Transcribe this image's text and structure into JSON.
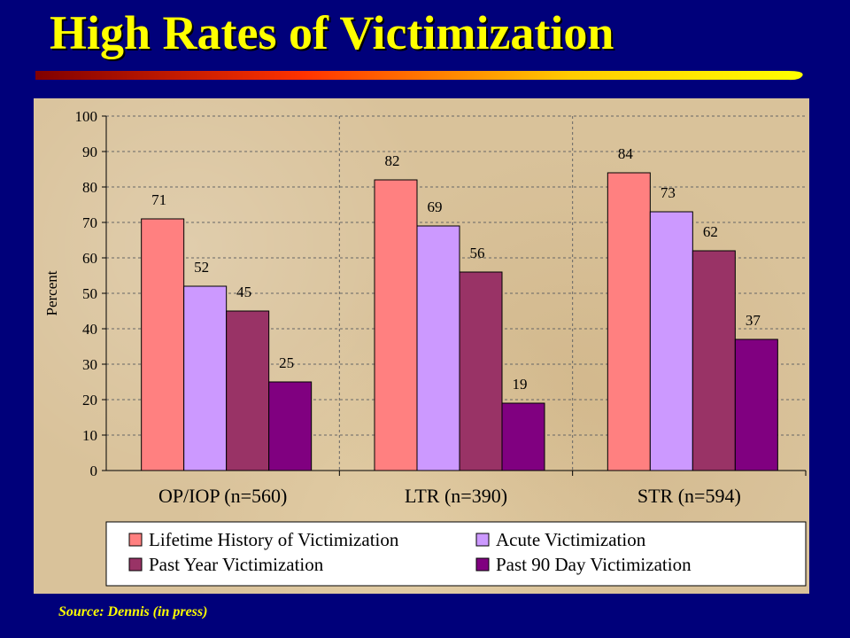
{
  "slide": {
    "title": "High Rates of Victimization",
    "source": "Source:   Dennis (in press)"
  },
  "colors": {
    "background": "#00007a",
    "title": "#ffff00",
    "panel": "#d9c29a"
  },
  "chart_data": {
    "type": "bar",
    "title": "",
    "xlabel": "",
    "ylabel": "Percent",
    "ylim": [
      0,
      100
    ],
    "yticks": [
      0,
      10,
      20,
      30,
      40,
      50,
      60,
      70,
      80,
      90,
      100
    ],
    "grid": true,
    "legend_position": "bottom",
    "categories": [
      "OP/IOP (n=560)",
      "LTR (n=390)",
      "STR (n=594)"
    ],
    "series": [
      {
        "name": "Lifetime History of Victimization",
        "color": "#ff8080",
        "values": [
          71,
          82,
          84
        ]
      },
      {
        "name": "Acute Victimization",
        "color": "#cc99ff",
        "values": [
          52,
          69,
          73
        ]
      },
      {
        "name": "Past Year Victimization",
        "color": "#993366",
        "values": [
          45,
          56,
          62
        ]
      },
      {
        "name": "Past 90 Day Victimization",
        "color": "#800080",
        "values": [
          25,
          19,
          37
        ]
      }
    ]
  }
}
